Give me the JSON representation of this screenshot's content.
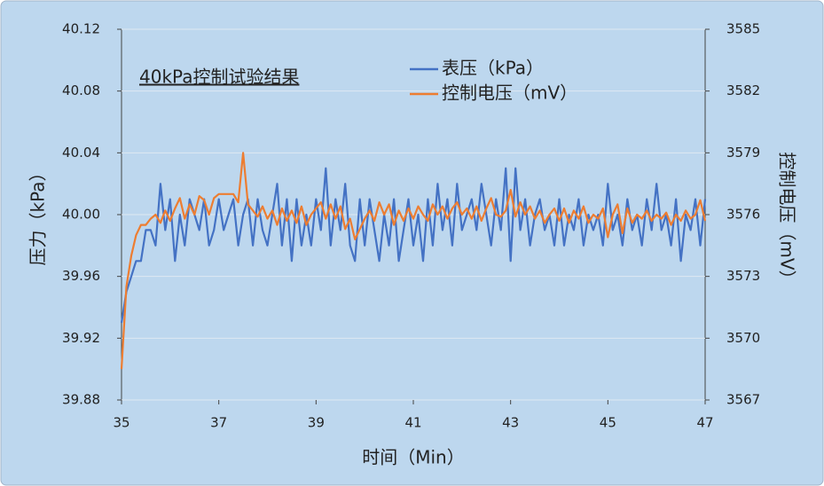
{
  "chart_data": {
    "type": "line",
    "title": "40kPa控制试验结果",
    "x_label": "时间（Min）",
    "y_label": "压力（kPa）",
    "y2_label": "控制电压（mV）",
    "x": [
      35.0,
      35.1,
      35.2,
      35.3,
      35.4,
      35.5,
      35.6,
      35.7,
      35.8,
      35.9,
      36.0,
      36.1,
      36.2,
      36.3,
      36.4,
      36.5,
      36.6,
      36.7,
      36.8,
      36.9,
      37.0,
      37.1,
      37.2,
      37.3,
      37.4,
      37.5,
      37.6,
      37.7,
      37.8,
      37.9,
      38.0,
      38.1,
      38.2,
      38.3,
      38.4,
      38.5,
      38.6,
      38.7,
      38.8,
      38.9,
      39.0,
      39.1,
      39.2,
      39.3,
      39.4,
      39.5,
      39.6,
      39.7,
      39.8,
      39.9,
      40.0,
      40.1,
      40.2,
      40.3,
      40.4,
      40.5,
      40.6,
      40.7,
      40.8,
      40.9,
      41.0,
      41.1,
      41.2,
      41.3,
      41.4,
      41.5,
      41.6,
      41.7,
      41.8,
      41.9,
      42.0,
      42.1,
      42.2,
      42.3,
      42.4,
      42.5,
      42.6,
      42.7,
      42.8,
      42.9,
      43.0,
      43.1,
      43.2,
      43.3,
      43.4,
      43.5,
      43.6,
      43.7,
      43.8,
      43.9,
      44.0,
      44.1,
      44.2,
      44.3,
      44.4,
      44.5,
      44.6,
      44.7,
      44.8,
      44.9,
      45.0,
      45.1,
      45.2,
      45.3,
      45.4,
      45.5,
      45.6,
      45.7,
      45.8,
      45.9,
      46.0,
      46.1,
      46.2,
      46.3,
      46.4,
      46.5,
      46.6,
      46.7,
      46.8,
      46.9,
      47.0
    ],
    "xlim": [
      35,
      47
    ],
    "xticks": [
      35,
      37,
      39,
      41,
      43,
      45,
      47
    ],
    "ylim": [
      39.88,
      40.12
    ],
    "yticks": [
      39.88,
      39.92,
      39.96,
      {
        "value": 40.0,
        "label": "40.00"
      },
      40.04,
      40.08,
      40.12
    ],
    "y2lim": [
      3567,
      3585
    ],
    "y2ticks": [
      3567,
      3570,
      3573,
      3576,
      3579,
      3582,
      3585
    ],
    "grid": true,
    "legend": "top",
    "series": [
      {
        "name": "表压（kPa）",
        "color": "#4472c4",
        "values": [
          39.93,
          39.95,
          39.96,
          39.97,
          39.97,
          39.99,
          39.99,
          39.98,
          40.02,
          39.99,
          40.01,
          39.97,
          40.0,
          39.98,
          40.01,
          40.0,
          39.99,
          40.01,
          39.98,
          39.99,
          40.01,
          39.99,
          40.0,
          40.01,
          39.98,
          40.0,
          40.01,
          39.98,
          40.01,
          39.99,
          39.98,
          40.0,
          40.02,
          39.98,
          40.01,
          39.97,
          40.01,
          39.98,
          40.0,
          39.98,
          40.01,
          39.99,
          40.03,
          39.98,
          40.01,
          39.99,
          40.02,
          39.98,
          39.97,
          40.01,
          39.98,
          40.01,
          39.99,
          39.97,
          40.0,
          39.98,
          40.01,
          39.97,
          39.99,
          40.01,
          39.98,
          40.0,
          39.97,
          40.01,
          39.98,
          40.02,
          39.99,
          40.01,
          39.98,
          40.02,
          39.99,
          40.0,
          40.01,
          39.99,
          40.02,
          40.0,
          39.98,
          40.01,
          39.99,
          40.03,
          39.97,
          40.03,
          39.99,
          40.01,
          39.98,
          40.0,
          40.01,
          39.99,
          40.0,
          39.98,
          40.01,
          39.98,
          40.0,
          39.99,
          40.01,
          39.98,
          40.0,
          39.99,
          40.0,
          39.98,
          40.02,
          39.99,
          40.0,
          39.98,
          40.01,
          39.99,
          40.0,
          39.98,
          40.01,
          39.99,
          40.02,
          39.99,
          40.0,
          39.98,
          40.01,
          39.97,
          40.0,
          39.99,
          40.01,
          39.98,
          40.01
        ]
      },
      {
        "name": "控制电压（mV）",
        "color": "#ed7d31",
        "axis": "y2",
        "values": [
          3568.5,
          3572.5,
          3574.0,
          3575.0,
          3575.5,
          3575.5,
          3575.8,
          3576.0,
          3575.6,
          3576.2,
          3575.7,
          3576.3,
          3576.8,
          3575.8,
          3576.5,
          3576.0,
          3576.9,
          3576.7,
          3576.0,
          3576.8,
          3577.0,
          3577.0,
          3577.0,
          3577.0,
          3576.6,
          3579.0,
          3576.5,
          3576.2,
          3575.9,
          3576.4,
          3575.8,
          3576.2,
          3575.5,
          3576.3,
          3575.7,
          3576.2,
          3575.6,
          3576.4,
          3575.5,
          3576.0,
          3576.3,
          3576.6,
          3575.8,
          3576.5,
          3575.8,
          3576.4,
          3575.3,
          3575.8,
          3574.8,
          3575.3,
          3575.8,
          3576.2,
          3575.7,
          3576.6,
          3576.0,
          3576.5,
          3575.5,
          3576.2,
          3575.7,
          3576.3,
          3575.8,
          3576.4,
          3576.0,
          3575.7,
          3576.5,
          3576.0,
          3576.4,
          3575.8,
          3576.3,
          3576.6,
          3576.0,
          3576.3,
          3575.8,
          3576.4,
          3575.7,
          3576.3,
          3576.8,
          3576.0,
          3575.9,
          3576.2,
          3577.2,
          3575.9,
          3576.6,
          3576.0,
          3576.4,
          3575.8,
          3576.2,
          3575.6,
          3576.0,
          3576.3,
          3575.7,
          3576.3,
          3575.6,
          3576.2,
          3575.8,
          3576.4,
          3575.6,
          3576.0,
          3575.8,
          3576.3,
          3574.9,
          3576.0,
          3576.5,
          3575.1,
          3576.3,
          3575.6,
          3576.0,
          3575.8,
          3576.2,
          3575.7,
          3576.0,
          3575.8,
          3576.1,
          3575.5,
          3576.0,
          3575.7,
          3576.2,
          3575.8,
          3576.0,
          3576.7,
          3575.7
        ]
      }
    ]
  }
}
